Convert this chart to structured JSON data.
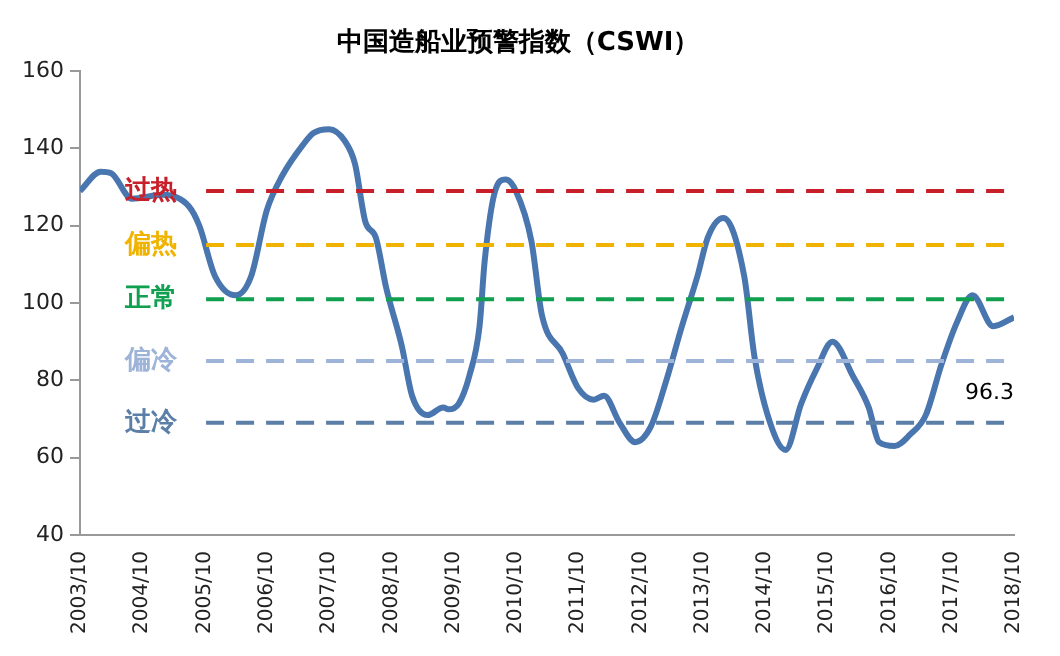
{
  "chart_data": {
    "type": "line",
    "title": "中国造船业预警指数（CSWI）",
    "x": [
      "2003-10",
      "2004-02",
      "2004-04",
      "2004-08",
      "2005-02",
      "2005-07",
      "2005-09",
      "2005-12",
      "2006-04",
      "2006-07",
      "2006-10",
      "2007-01",
      "2007-05",
      "2007-07",
      "2007-10",
      "2008-01",
      "2008-03",
      "2008-05",
      "2008-07",
      "2008-09",
      "2008-12",
      "2009-02",
      "2009-05",
      "2009-08",
      "2009-09",
      "2009-11",
      "2010-01",
      "2010-03",
      "2010-04",
      "2010-06",
      "2010-08",
      "2010-10",
      "2011-01",
      "2011-03",
      "2011-07",
      "2011-10",
      "2012-01",
      "2012-03",
      "2012-06",
      "2012-09",
      "2012-12",
      "2013-03",
      "2013-06",
      "2013-09",
      "2013-11",
      "2014-02",
      "2014-06",
      "2014-08",
      "2014-11",
      "2015-02",
      "2015-05",
      "2015-08",
      "2015-11",
      "2016-03",
      "2016-06",
      "2016-08",
      "2016-11",
      "2017-02",
      "2017-05",
      "2017-08",
      "2017-11",
      "2018-02",
      "2018-06",
      "2018-10"
    ],
    "series": [
      {
        "color": "#4a76b0",
        "values": [
          129,
          134,
          133.6,
          127,
          128,
          125,
          120,
          107,
          102,
          107,
          124,
          133,
          141,
          144,
          145,
          142,
          136,
          121,
          117,
          104,
          89,
          76,
          71,
          73,
          72.5,
          74,
          81,
          94,
          111,
          129,
          132,
          129,
          116,
          97,
          87,
          78,
          75,
          76,
          69,
          64,
          68,
          80,
          94,
          107,
          117,
          122,
          107,
          86,
          69,
          62,
          74,
          83,
          90,
          81,
          73,
          64,
          63,
          66,
          71,
          84,
          95,
          102,
          94,
          96.3
        ]
      }
    ],
    "xlim": [
      "2003-10",
      "2018-10"
    ],
    "xticks": [
      {
        "value": "2003-10",
        "label": "2003/10"
      },
      {
        "value": "2004-10",
        "label": "2004/10"
      },
      {
        "value": "2005-10",
        "label": "2005/10"
      },
      {
        "value": "2006-10",
        "label": "2006/10"
      },
      {
        "value": "2007-10",
        "label": "2007/10"
      },
      {
        "value": "2008-10",
        "label": "2008/10"
      },
      {
        "value": "2009-10",
        "label": "2009/10"
      },
      {
        "value": "2010-10",
        "label": "2010/10"
      },
      {
        "value": "2011-10",
        "label": "2011/10"
      },
      {
        "value": "2012-10",
        "label": "2012/10"
      },
      {
        "value": "2013-10",
        "label": "2013/10"
      },
      {
        "value": "2014-10",
        "label": "2014/10"
      },
      {
        "value": "2015-10",
        "label": "2015/10"
      },
      {
        "value": "2016-10",
        "label": "2016/10"
      },
      {
        "value": "2017-10",
        "label": "2017/10"
      },
      {
        "value": "2018-10",
        "label": "2018/10"
      }
    ],
    "ylim": [
      40,
      160
    ],
    "yticks": [
      40,
      60,
      80,
      100,
      120,
      140,
      160
    ],
    "ref_lines": [
      {
        "axis": "y",
        "value": 129,
        "label": "过热",
        "color": "#c8202a",
        "line_style": "dashed"
      },
      {
        "axis": "y",
        "value": 115,
        "label": "偏热",
        "color": "#f0b400",
        "line_style": "dashed"
      },
      {
        "axis": "y",
        "value": 101,
        "label": "正常",
        "color": "#10a050",
        "line_style": "dashed"
      },
      {
        "axis": "y",
        "value": 85,
        "label": "偏冷",
        "color": "#9db4d8",
        "line_style": "dashed"
      },
      {
        "axis": "y",
        "value": 69,
        "label": "过冷",
        "color": "#5b7fa6",
        "line_style": "dashed"
      }
    ],
    "annotations": [
      {
        "text": "96.3",
        "x": "2018-10",
        "y": 96.3
      }
    ],
    "grid": false,
    "legend": false,
    "marker": "none",
    "line_style": "solid"
  }
}
